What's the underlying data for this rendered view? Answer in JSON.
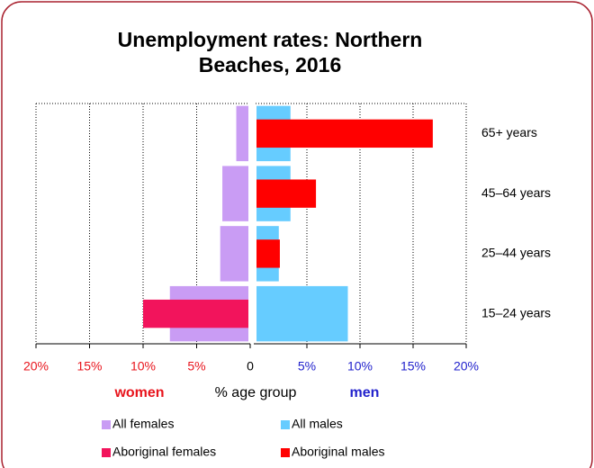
{
  "chart_data": {
    "type": "bar",
    "orientation": "horizontal",
    "title": "Unemployment rates: Northern Beaches, 2016",
    "categories": [
      "65+ years",
      "45–64 years",
      "25–44 years",
      "15–24 years"
    ],
    "series": [
      {
        "name": "All females",
        "side": "left",
        "color": "#c99cf4",
        "values": [
          1.3,
          2.6,
          2.8,
          7.5
        ]
      },
      {
        "name": "Aboriginal females",
        "side": "left",
        "color": "#f2145c",
        "values": [
          0,
          0,
          0,
          10
        ]
      },
      {
        "name": "All males",
        "side": "right",
        "color": "#66ccff",
        "values": [
          3.2,
          3.2,
          2.1,
          8.6
        ]
      },
      {
        "name": "Aboriginal males",
        "side": "right",
        "color": "#ff0000",
        "values": [
          16.6,
          5.6,
          2.2,
          0
        ]
      }
    ],
    "xlim": [
      0,
      20
    ],
    "xticks_left": [
      {
        "value": 20,
        "label": "20%"
      },
      {
        "value": 15,
        "label": "15%"
      },
      {
        "value": 10,
        "label": "10%"
      },
      {
        "value": 5,
        "label": "5%"
      },
      0
    ],
    "xticks_right": [
      {
        "value": 5,
        "label": "5%"
      },
      {
        "value": 10,
        "label": "10%"
      },
      {
        "value": 15,
        "label": "15%"
      },
      {
        "value": 20,
        "label": "20%"
      }
    ],
    "left_label": "women",
    "x_label": "% age group",
    "right_label": "men",
    "left_color": "#e8141c",
    "right_color": "#2222cc",
    "grid": true
  }
}
